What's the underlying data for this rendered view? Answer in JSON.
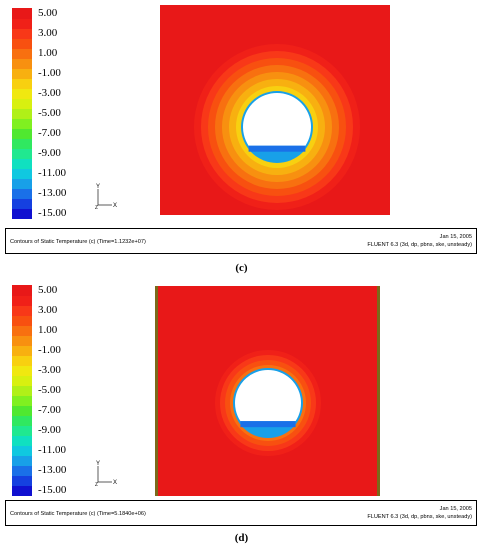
{
  "chart_data": [
    {
      "type": "heatmap",
      "subfigure_label": "(c)",
      "colorbar": {
        "labels": [
          "5.00",
          "3.00",
          "1.00",
          "-1.00",
          "-3.00",
          "-5.00",
          "-7.00",
          "-9.00",
          "-11.00",
          "-13.00",
          "-15.00"
        ],
        "range": [
          -15,
          5
        ],
        "levels": 21,
        "colors": [
          "#1010d0",
          "#1540e0",
          "#1a70e8",
          "#18a0e8",
          "#10c8e0",
          "#10e0c0",
          "#20e890",
          "#30e860",
          "#50e830",
          "#80f020",
          "#b0f018",
          "#d8f010",
          "#f0e810",
          "#f8d010",
          "#f8b010",
          "#f89010",
          "#f87010",
          "#f85010",
          "#f83818",
          "#f02018",
          "#e81818"
        ]
      },
      "field_description": "temperature field around tunnel opening",
      "outer_value": 5.0,
      "info_title": "Contours of Static Temperature (c)  (Time=1.1232e+07)",
      "info_date": "Jan 15, 2005",
      "info_solver": "FLUENT 6.3 (3d, dp, pbns, ske, unsteady)",
      "axis_labels": {
        "y": "Y",
        "x": "X",
        "z": "Z"
      }
    },
    {
      "type": "heatmap",
      "subfigure_label": "(d)",
      "colorbar": {
        "labels": [
          "5.00",
          "3.00",
          "1.00",
          "-1.00",
          "-3.00",
          "-5.00",
          "-7.00",
          "-9.00",
          "-11.00",
          "-13.00",
          "-15.00"
        ],
        "range": [
          -15,
          5
        ],
        "levels": 21,
        "colors": [
          "#1010d0",
          "#1540e0",
          "#1a70e8",
          "#18a0e8",
          "#10c8e0",
          "#10e0c0",
          "#20e890",
          "#30e860",
          "#50e830",
          "#80f020",
          "#b0f018",
          "#d8f010",
          "#f0e810",
          "#f8d010",
          "#f8b010",
          "#f89010",
          "#f87010",
          "#f85010",
          "#f83818",
          "#f02018",
          "#e81818"
        ]
      },
      "outer_value": 5.0,
      "info_title": "Contours of Static Temperature (c)  (Time=5.1840e+06)",
      "info_date": "Jan 15, 2005",
      "info_solver": "FLUENT 6.3 (3d, dp, pbns, ske, unsteady)",
      "axis_labels": {
        "y": "Y",
        "x": "X",
        "z": "Z"
      }
    }
  ]
}
